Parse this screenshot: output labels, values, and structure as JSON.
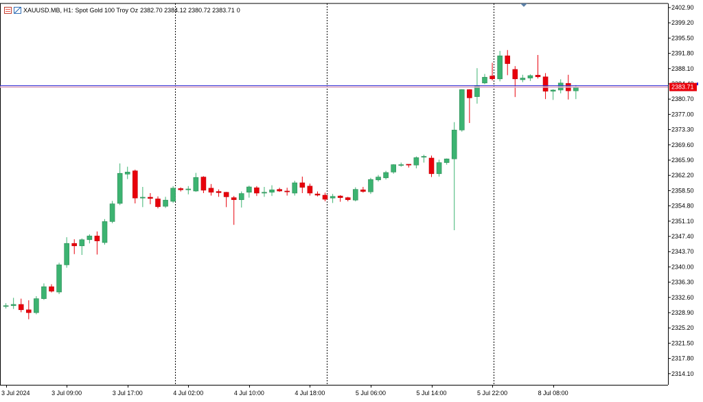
{
  "header": {
    "symbol": "XAUUSD.MB, H1:",
    "description": "Spot Gold 100 Troy Oz",
    "ohlc": "2382.70 2384.12 2380.72 2383.71",
    "volume": "0",
    "icons": [
      "chart-properties-icon",
      "one-click-trading-icon"
    ]
  },
  "price_tag": {
    "label": "2383.71",
    "color": "#e8000b"
  },
  "colors": {
    "bull": "#3cb371",
    "bear": "#e8000b",
    "grid": "#000000",
    "bidline": "#e0b0c8",
    "askline": "#2b2bd6"
  },
  "chart_data": {
    "type": "candlestick",
    "ylim": [
      2312.5,
      2404.5
    ],
    "y_ticks": [
      "2402.90",
      "2399.20",
      "2395.50",
      "2391.80",
      "2388.10",
      "2384.40",
      "2380.70",
      "2377.00",
      "2373.30",
      "2369.60",
      "2365.90",
      "2362.20",
      "2358.50",
      "2354.80",
      "2351.10",
      "2347.40",
      "2343.70",
      "2340.00",
      "2336.30",
      "2332.60",
      "2328.90",
      "2325.20",
      "2321.50",
      "2317.80",
      "2314.10"
    ],
    "x_labels": [
      "3 Jul 2024",
      "3 Jul 09:00",
      "3 Jul 17:00",
      "4 Jul 02:00",
      "4 Jul 10:00",
      "4 Jul 18:00",
      "5 Jul 06:00",
      "5 Jul 14:00",
      "5 Jul 22:00",
      "8 Jul 08:00"
    ],
    "period_separators": [
      "4 Jul 00:00",
      "5 Jul 00:00",
      "8 Jul 00:00"
    ],
    "current_price": 2383.71,
    "candles": [
      {
        "o": 2330.4,
        "h": 2331.2,
        "l": 2329.9,
        "c": 2330.6
      },
      {
        "o": 2330.6,
        "h": 2332.5,
        "l": 2329.8,
        "c": 2330.9
      },
      {
        "o": 2330.9,
        "h": 2332.3,
        "l": 2329.0,
        "c": 2329.6
      },
      {
        "o": 2329.6,
        "h": 2331.9,
        "l": 2327.3,
        "c": 2328.9
      },
      {
        "o": 2328.9,
        "h": 2332.9,
        "l": 2328.5,
        "c": 2332.3
      },
      {
        "o": 2332.3,
        "h": 2336.0,
        "l": 2332.0,
        "c": 2335.2
      },
      {
        "o": 2335.2,
        "h": 2335.8,
        "l": 2333.8,
        "c": 2334.1
      },
      {
        "o": 2333.9,
        "h": 2341.0,
        "l": 2333.4,
        "c": 2340.5
      },
      {
        "o": 2340.5,
        "h": 2347.2,
        "l": 2339.8,
        "c": 2345.7
      },
      {
        "o": 2345.7,
        "h": 2346.7,
        "l": 2343.1,
        "c": 2345.1
      },
      {
        "o": 2345.1,
        "h": 2346.9,
        "l": 2342.9,
        "c": 2346.6
      },
      {
        "o": 2346.6,
        "h": 2347.9,
        "l": 2345.7,
        "c": 2347.5
      },
      {
        "o": 2347.5,
        "h": 2348.6,
        "l": 2343.0,
        "c": 2346.3
      },
      {
        "o": 2345.9,
        "h": 2351.6,
        "l": 2345.4,
        "c": 2351.0
      },
      {
        "o": 2351.0,
        "h": 2356.0,
        "l": 2350.6,
        "c": 2355.3
      },
      {
        "o": 2355.4,
        "h": 2365.1,
        "l": 2355.0,
        "c": 2362.7
      },
      {
        "o": 2362.5,
        "h": 2364.3,
        "l": 2361.3,
        "c": 2363.0
      },
      {
        "o": 2363.3,
        "h": 2363.6,
        "l": 2355.4,
        "c": 2356.7
      },
      {
        "o": 2356.7,
        "h": 2359.4,
        "l": 2354.5,
        "c": 2356.9
      },
      {
        "o": 2356.9,
        "h": 2357.9,
        "l": 2355.2,
        "c": 2356.6
      },
      {
        "o": 2356.5,
        "h": 2357.1,
        "l": 2354.2,
        "c": 2354.6
      },
      {
        "o": 2354.7,
        "h": 2357.0,
        "l": 2354.3,
        "c": 2356.2
      },
      {
        "o": 2355.9,
        "h": 2359.6,
        "l": 2355.5,
        "c": 2359.1
      },
      {
        "o": 2359.0,
        "h": 2359.3,
        "l": 2358.3,
        "c": 2358.7
      },
      {
        "o": 2358.7,
        "h": 2359.6,
        "l": 2357.6,
        "c": 2358.9
      },
      {
        "o": 2358.4,
        "h": 2362.8,
        "l": 2358.2,
        "c": 2361.7
      },
      {
        "o": 2361.8,
        "h": 2362.0,
        "l": 2357.9,
        "c": 2358.6
      },
      {
        "o": 2359.1,
        "h": 2360.1,
        "l": 2357.3,
        "c": 2358.1
      },
      {
        "o": 2358.3,
        "h": 2358.8,
        "l": 2357.0,
        "c": 2358.0
      },
      {
        "o": 2358.1,
        "h": 2358.2,
        "l": 2354.5,
        "c": 2357.0
      },
      {
        "o": 2356.8,
        "h": 2357.2,
        "l": 2350.2,
        "c": 2356.3
      },
      {
        "o": 2356.3,
        "h": 2358.3,
        "l": 2354.4,
        "c": 2357.8
      },
      {
        "o": 2358.1,
        "h": 2359.7,
        "l": 2356.8,
        "c": 2359.4
      },
      {
        "o": 2359.2,
        "h": 2359.6,
        "l": 2357.2,
        "c": 2357.9
      },
      {
        "o": 2357.9,
        "h": 2359.4,
        "l": 2357.0,
        "c": 2358.1
      },
      {
        "o": 2358.1,
        "h": 2359.8,
        "l": 2357.2,
        "c": 2358.7
      },
      {
        "o": 2358.8,
        "h": 2359.2,
        "l": 2358.2,
        "c": 2358.4
      },
      {
        "o": 2358.4,
        "h": 2359.2,
        "l": 2357.3,
        "c": 2358.2
      },
      {
        "o": 2357.9,
        "h": 2360.9,
        "l": 2357.3,
        "c": 2360.4
      },
      {
        "o": 2360.4,
        "h": 2361.9,
        "l": 2357.9,
        "c": 2359.3
      },
      {
        "o": 2359.6,
        "h": 2360.2,
        "l": 2357.3,
        "c": 2357.9
      },
      {
        "o": 2357.7,
        "h": 2358.3,
        "l": 2357.1,
        "c": 2357.4
      },
      {
        "o": 2357.4,
        "h": 2358.0,
        "l": 2355.9,
        "c": 2356.4
      },
      {
        "o": 2356.7,
        "h": 2357.7,
        "l": 2355.5,
        "c": 2357.1
      },
      {
        "o": 2357.2,
        "h": 2357.4,
        "l": 2355.8,
        "c": 2356.8
      },
      {
        "o": 2356.8,
        "h": 2357.0,
        "l": 2355.9,
        "c": 2356.3
      },
      {
        "o": 2356.2,
        "h": 2359.3,
        "l": 2355.9,
        "c": 2358.8
      },
      {
        "o": 2358.7,
        "h": 2359.4,
        "l": 2358.0,
        "c": 2358.3
      },
      {
        "o": 2358.2,
        "h": 2361.6,
        "l": 2357.7,
        "c": 2361.2
      },
      {
        "o": 2361.1,
        "h": 2362.3,
        "l": 2360.7,
        "c": 2361.8
      },
      {
        "o": 2361.6,
        "h": 2363.3,
        "l": 2361.2,
        "c": 2362.9
      },
      {
        "o": 2363.0,
        "h": 2364.9,
        "l": 2362.6,
        "c": 2364.8
      },
      {
        "o": 2364.6,
        "h": 2365.3,
        "l": 2364.3,
        "c": 2364.8
      },
      {
        "o": 2364.9,
        "h": 2364.9,
        "l": 2364.1,
        "c": 2364.7
      },
      {
        "o": 2364.7,
        "h": 2366.8,
        "l": 2363.9,
        "c": 2366.5
      },
      {
        "o": 2366.6,
        "h": 2367.2,
        "l": 2365.3,
        "c": 2366.8
      },
      {
        "o": 2366.4,
        "h": 2367.0,
        "l": 2361.8,
        "c": 2362.6
      },
      {
        "o": 2362.6,
        "h": 2366.0,
        "l": 2361.9,
        "c": 2365.3
      },
      {
        "o": 2365.3,
        "h": 2366.3,
        "l": 2364.8,
        "c": 2366.2
      },
      {
        "o": 2366.2,
        "h": 2375.1,
        "l": 2348.9,
        "c": 2373.2
      },
      {
        "o": 2373.2,
        "h": 2383.1,
        "l": 2372.8,
        "c": 2383.0
      },
      {
        "o": 2383.0,
        "h": 2383.1,
        "l": 2374.9,
        "c": 2381.0
      },
      {
        "o": 2381.3,
        "h": 2388.2,
        "l": 2379.6,
        "c": 2384.0
      },
      {
        "o": 2384.6,
        "h": 2386.8,
        "l": 2384.3,
        "c": 2386.0
      },
      {
        "o": 2386.3,
        "h": 2389.5,
        "l": 2385.2,
        "c": 2385.6
      },
      {
        "o": 2385.6,
        "h": 2392.4,
        "l": 2385.0,
        "c": 2391.2
      },
      {
        "o": 2391.2,
        "h": 2392.6,
        "l": 2386.5,
        "c": 2389.3
      },
      {
        "o": 2387.9,
        "h": 2388.7,
        "l": 2381.2,
        "c": 2385.6
      },
      {
        "o": 2385.4,
        "h": 2386.6,
        "l": 2384.8,
        "c": 2385.8
      },
      {
        "o": 2385.8,
        "h": 2386.7,
        "l": 2385.1,
        "c": 2386.4
      },
      {
        "o": 2386.5,
        "h": 2391.4,
        "l": 2385.7,
        "c": 2386.1
      },
      {
        "o": 2386.1,
        "h": 2387.0,
        "l": 2380.7,
        "c": 2382.6
      },
      {
        "o": 2382.6,
        "h": 2383.1,
        "l": 2380.5,
        "c": 2382.9
      },
      {
        "o": 2382.9,
        "h": 2385.5,
        "l": 2382.1,
        "c": 2384.6
      },
      {
        "o": 2384.5,
        "h": 2386.6,
        "l": 2380.6,
        "c": 2382.7
      },
      {
        "o": 2382.7,
        "h": 2384.1,
        "l": 2380.7,
        "c": 2383.7
      }
    ]
  }
}
